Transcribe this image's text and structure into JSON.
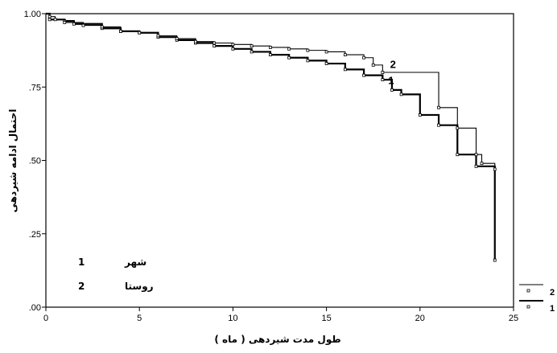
{
  "chart_data": {
    "type": "line",
    "step": true,
    "xlabel": "طول مدت شیردهی ( ماه )",
    "ylabel": "احتمال ادامه شیردهی",
    "xlim": [
      0,
      25
    ],
    "ylim": [
      0,
      1
    ],
    "x_ticks": [
      "0",
      "5",
      "10",
      "15",
      "20",
      "25"
    ],
    "y_ticks": [
      ".00",
      ".25",
      ".50",
      ".75",
      "1.00"
    ],
    "grid": false,
    "legend_position": "bottom-left",
    "series": [
      {
        "name": "شهر",
        "id": "1",
        "points": [
          [
            0,
            1.0
          ],
          [
            0.2,
            0.98
          ],
          [
            1,
            0.975
          ],
          [
            1.5,
            0.965
          ],
          [
            3,
            0.95
          ],
          [
            4,
            0.94
          ],
          [
            5,
            0.935
          ],
          [
            6,
            0.92
          ],
          [
            7,
            0.91
          ],
          [
            8,
            0.9
          ],
          [
            9,
            0.89
          ],
          [
            10,
            0.88
          ],
          [
            11,
            0.87
          ],
          [
            12,
            0.86
          ],
          [
            13,
            0.85
          ],
          [
            14,
            0.84
          ],
          [
            15,
            0.83
          ],
          [
            16,
            0.81
          ],
          [
            17,
            0.79
          ],
          [
            18,
            0.775
          ],
          [
            18.5,
            0.74
          ],
          [
            19,
            0.725
          ],
          [
            20,
            0.655
          ],
          [
            21,
            0.62
          ],
          [
            22,
            0.52
          ],
          [
            23,
            0.48
          ],
          [
            24,
            0.16
          ]
        ],
        "line_width": 2.2
      },
      {
        "name": "روستا",
        "id": "2",
        "points": [
          [
            0,
            1.0
          ],
          [
            0.2,
            0.99
          ],
          [
            0.5,
            0.98
          ],
          [
            1,
            0.97
          ],
          [
            2,
            0.96
          ],
          [
            3,
            0.955
          ],
          [
            4,
            0.94
          ],
          [
            5,
            0.935
          ],
          [
            6,
            0.925
          ],
          [
            7,
            0.915
          ],
          [
            8,
            0.905
          ],
          [
            9,
            0.9
          ],
          [
            10,
            0.895
          ],
          [
            11,
            0.89
          ],
          [
            12,
            0.885
          ],
          [
            13,
            0.88
          ],
          [
            14,
            0.875
          ],
          [
            15,
            0.87
          ],
          [
            16,
            0.86
          ],
          [
            17,
            0.85
          ],
          [
            17.5,
            0.825
          ],
          [
            18,
            0.8
          ],
          [
            21,
            0.68
          ],
          [
            22,
            0.61
          ],
          [
            23,
            0.52
          ],
          [
            23.3,
            0.49
          ],
          [
            24,
            0.47
          ]
        ],
        "line_width": 1.1
      }
    ],
    "curve_labels": [
      "1",
      "2"
    ],
    "legend": [
      {
        "id": "1",
        "label": "شهر"
      },
      {
        "id": "2",
        "label": "روستا"
      }
    ],
    "side_legend": [
      "2",
      "1"
    ]
  }
}
